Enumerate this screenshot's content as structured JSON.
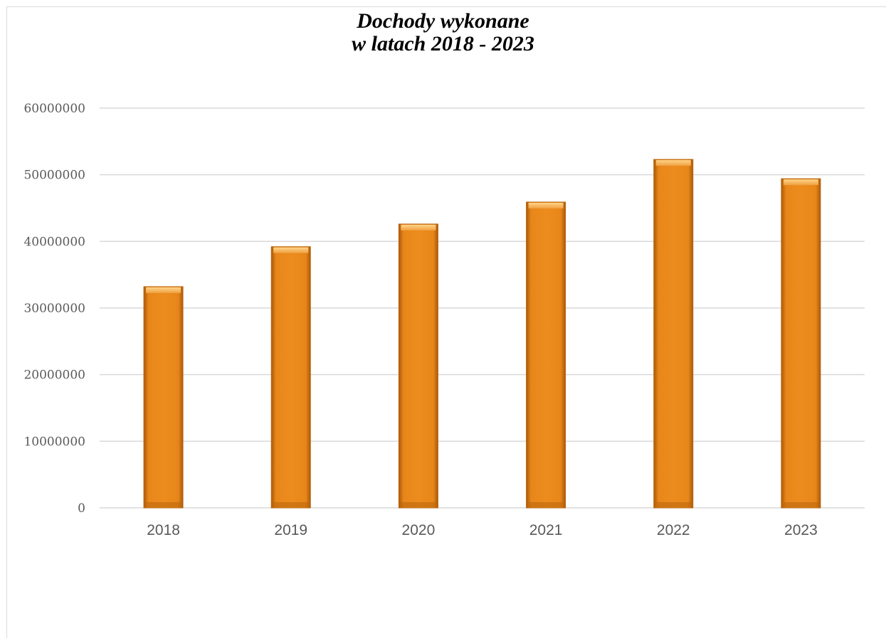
{
  "chart_data": {
    "type": "bar",
    "title_line1": "Dochody wykonane",
    "title_line2": "w latach 2018 - 2023",
    "categories": [
      "2018",
      "2019",
      "2020",
      "2021",
      "2022",
      "2023"
    ],
    "values": [
      33200000,
      39200000,
      42600000,
      45900000,
      52300000,
      49400000
    ],
    "ylim": [
      0,
      60000000
    ],
    "yticks": [
      "0",
      "10000000",
      "20000000",
      "30000000",
      "40000000",
      "50000000",
      "60000000"
    ],
    "ytick_values": [
      0,
      10000000,
      20000000,
      30000000,
      40000000,
      50000000,
      60000000
    ],
    "grid": true,
    "legend": "none",
    "colors": {
      "bar": "#e8861a",
      "bar_dark": "#b8640c",
      "bar_light": "#f6b35a",
      "grid": "#d9d9d9",
      "text": "#595959"
    }
  }
}
